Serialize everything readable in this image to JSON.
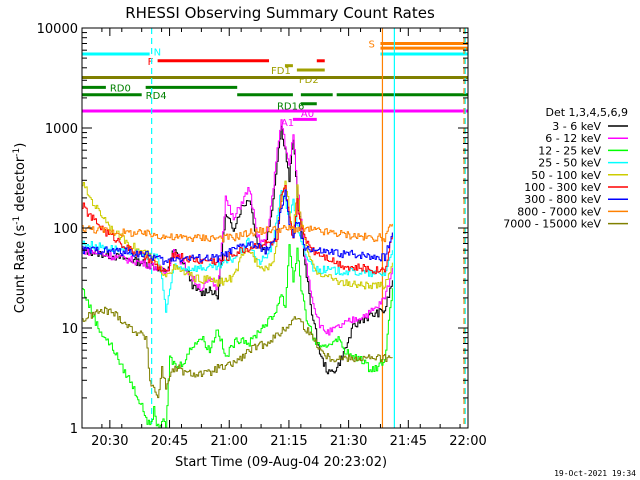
{
  "chart_data": {
    "type": "line",
    "title": "RHESSI Observing Summary Count Rates",
    "xlabel": "Start Time (09-Aug-04 20:23:02)",
    "ylabel_main": "Count Rate (s",
    "ylabel_sup1": "-1",
    "ylabel_mid": " detector",
    "ylabel_sup2": "-1",
    "ylabel_end": ")",
    "x_unit": "minutes after 20:23:02",
    "xlim": [
      0,
      97
    ],
    "ylim": [
      1,
      10000
    ],
    "yscale": "log",
    "x_ticks": [
      {
        "label": "20:30",
        "x": 7
      },
      {
        "label": "20:45",
        "x": 22
      },
      {
        "label": "21:00",
        "x": 37
      },
      {
        "label": "21:15",
        "x": 52
      },
      {
        "label": "21:30",
        "x": 67
      },
      {
        "label": "21:45",
        "x": 82
      },
      {
        "label": "22:00",
        "x": 97
      }
    ],
    "y_ticks": [
      {
        "label": "1",
        "y": 1
      },
      {
        "label": "10",
        "y": 10
      },
      {
        "label": "100",
        "y": 100
      },
      {
        "label": "1000",
        "y": 1000
      },
      {
        "label": "10000",
        "y": 10000
      }
    ],
    "legend_title": "Det 1,3,4,5,6,9",
    "legend_position": "right",
    "series": [
      {
        "name": "3 - 6 keV",
        "color": "#000000",
        "x": [
          0,
          5,
          10,
          15,
          19,
          21,
          23,
          26,
          28,
          30,
          32,
          34,
          36,
          38,
          40,
          42,
          44,
          46,
          48,
          49,
          50,
          51,
          52,
          53,
          54,
          55,
          56,
          58,
          60,
          62,
          64,
          66,
          68,
          70,
          72,
          74,
          76,
          78
        ],
        "y": [
          60,
          55,
          50,
          45,
          40,
          35,
          60,
          40,
          25,
          22,
          25,
          20,
          130,
          100,
          160,
          200,
          70,
          60,
          200,
          500,
          1000,
          600,
          300,
          800,
          200,
          100,
          40,
          12,
          5,
          3.5,
          4,
          6,
          10,
          12,
          13,
          14,
          15,
          30
        ]
      },
      {
        "name": "6 - 12 keV",
        "color": "#ff00ff",
        "x": [
          0,
          5,
          10,
          15,
          19,
          21,
          23,
          26,
          28,
          30,
          32,
          34,
          36,
          38,
          40,
          42,
          44,
          46,
          48,
          49,
          50,
          51,
          52,
          53,
          54,
          55,
          56,
          58,
          60,
          62,
          64,
          66,
          68,
          70,
          72,
          74,
          76,
          78
        ],
        "y": [
          60,
          55,
          50,
          45,
          40,
          35,
          60,
          40,
          30,
          25,
          30,
          25,
          200,
          120,
          180,
          250,
          80,
          70,
          250,
          600,
          1200,
          700,
          400,
          900,
          250,
          120,
          50,
          18,
          10,
          9,
          10,
          11,
          12,
          13,
          14,
          16,
          20,
          40
        ]
      },
      {
        "name": "12 - 25 keV",
        "color": "#00ff00",
        "x": [
          0,
          4,
          8,
          10,
          12,
          14,
          16,
          17,
          18,
          19,
          20,
          21,
          22,
          24,
          26,
          28,
          30,
          32,
          34,
          36,
          38,
          40,
          42,
          44,
          46,
          48,
          50,
          51,
          52,
          53,
          54,
          55,
          56,
          58,
          60,
          62,
          64,
          66,
          68,
          70,
          72,
          74,
          76,
          78
        ],
        "y": [
          25,
          10,
          6,
          4,
          3,
          2,
          1.3,
          1,
          1.5,
          1,
          1.2,
          1,
          5,
          4,
          5,
          7,
          8,
          6,
          10,
          5,
          7,
          8,
          7,
          9,
          11,
          13,
          22,
          16,
          70,
          30,
          60,
          25,
          14,
          8,
          6,
          7,
          8,
          6,
          5,
          5,
          4,
          4,
          5,
          25
        ]
      },
      {
        "name": "25 - 50 keV",
        "color": "#00ffff",
        "x": [
          0,
          5,
          10,
          15,
          19,
          20,
          21,
          23,
          26,
          28,
          30,
          32,
          34,
          36,
          38,
          40,
          42,
          44,
          46,
          48,
          49,
          50,
          51,
          52,
          53,
          54,
          55,
          56,
          58,
          60,
          62,
          64,
          66,
          68,
          70,
          72,
          74,
          76,
          78
        ],
        "y": [
          70,
          65,
          60,
          55,
          50,
          30,
          15,
          40,
          40,
          40,
          40,
          40,
          40,
          45,
          50,
          60,
          75,
          45,
          50,
          70,
          140,
          250,
          180,
          130,
          200,
          100,
          70,
          55,
          40,
          38,
          38,
          37,
          37,
          36,
          36,
          35,
          35,
          35,
          60
        ]
      },
      {
        "name": "50 - 100 keV",
        "color": "#cccc00",
        "x": [
          0,
          2,
          4,
          6,
          8,
          10,
          12,
          14,
          16,
          18,
          19,
          21,
          23,
          26,
          28,
          30,
          32,
          34,
          36,
          38,
          40,
          42,
          44,
          46,
          48,
          49,
          50,
          51,
          52,
          53,
          54,
          55,
          56,
          58,
          60,
          62,
          64,
          66,
          68,
          70,
          72,
          74,
          76,
          78
        ],
        "y": [
          280,
          200,
          150,
          120,
          90,
          80,
          70,
          60,
          55,
          50,
          40,
          35,
          40,
          35,
          32,
          30,
          31,
          28,
          30,
          32,
          50,
          60,
          45,
          40,
          45,
          90,
          200,
          300,
          150,
          90,
          250,
          120,
          70,
          40,
          35,
          32,
          30,
          28,
          27,
          27,
          26,
          26,
          27,
          45
        ]
      },
      {
        "name": "100 - 300 keV",
        "color": "#ff0000",
        "x": [
          0,
          2,
          4,
          6,
          8,
          10,
          12,
          14,
          16,
          18,
          19,
          21,
          23,
          26,
          28,
          30,
          32,
          34,
          36,
          38,
          40,
          42,
          44,
          46,
          48,
          49,
          50,
          51,
          52,
          53,
          54,
          55,
          56,
          58,
          60,
          62,
          64,
          66,
          68,
          70,
          72,
          74,
          76,
          78
        ],
        "y": [
          170,
          130,
          110,
          90,
          80,
          70,
          60,
          55,
          50,
          45,
          40,
          35,
          55,
          50,
          48,
          47,
          48,
          46,
          50,
          55,
          60,
          63,
          68,
          70,
          72,
          75,
          200,
          250,
          120,
          80,
          180,
          100,
          80,
          60,
          55,
          50,
          45,
          42,
          40,
          40,
          39,
          38,
          39,
          90
        ]
      },
      {
        "name": "300 - 800 keV",
        "color": "#0000ff",
        "x": [
          0,
          5,
          10,
          15,
          19,
          21,
          23,
          26,
          28,
          30,
          32,
          34,
          36,
          38,
          40,
          42,
          44,
          46,
          48,
          49,
          50,
          51,
          52,
          53,
          54,
          55,
          56,
          58,
          60,
          62,
          64,
          66,
          68,
          70,
          72,
          74,
          76,
          78
        ],
        "y": [
          60,
          60,
          58,
          55,
          50,
          45,
          50,
          50,
          50,
          50,
          50,
          50,
          55,
          60,
          65,
          70,
          65,
          60,
          70,
          100,
          150,
          250,
          110,
          80,
          120,
          80,
          65,
          60,
          58,
          57,
          56,
          55,
          55,
          54,
          53,
          52,
          51,
          90
        ]
      },
      {
        "name": "800 - 7000 keV",
        "color": "#ff8000",
        "x": [
          0,
          5,
          10,
          15,
          19,
          21,
          23,
          26,
          28,
          30,
          32,
          34,
          36,
          38,
          40,
          42,
          44,
          46,
          48,
          50,
          52,
          54,
          56,
          58,
          60,
          62,
          64,
          66,
          68,
          70,
          72,
          74,
          76,
          78
        ],
        "y": [
          100,
          95,
          90,
          88,
          85,
          82,
          80,
          80,
          80,
          80,
          80,
          80,
          80,
          80,
          85,
          90,
          92,
          95,
          97,
          98,
          98,
          98,
          97,
          95,
          92,
          90,
          88,
          86,
          84,
          82,
          80,
          80,
          80,
          110
        ]
      },
      {
        "name": "7000 - 15000 keV",
        "color": "#808000",
        "x": [
          0,
          3,
          6,
          8,
          10,
          12,
          14,
          16,
          17,
          18,
          19,
          20,
          21,
          22,
          24,
          26,
          28,
          30,
          32,
          34,
          36,
          38,
          40,
          42,
          44,
          46,
          48,
          50,
          52,
          54,
          56,
          58,
          60,
          62,
          64,
          66,
          68,
          70,
          72,
          74,
          76,
          78
        ],
        "y": [
          12,
          14,
          15,
          14,
          12,
          10,
          9,
          8,
          3,
          2.5,
          2,
          4,
          2.5,
          3.5,
          4,
          3.5,
          3.5,
          3.5,
          3.5,
          4,
          4,
          4.5,
          5,
          6,
          6.5,
          7,
          8,
          9,
          11,
          13,
          10,
          8,
          6,
          5,
          5,
          5,
          5,
          5,
          5,
          5,
          5,
          5
        ]
      }
    ],
    "flags": [
      {
        "label": "N",
        "color": "#00ffff",
        "y": 5500,
        "segments": [
          [
            0,
            17
          ]
        ],
        "label_x": 18,
        "label_y": 5800
      },
      {
        "label": "F",
        "color": "#ff0000",
        "y": 4700,
        "segments": [
          [
            19,
            47
          ],
          [
            59,
            61
          ]
        ],
        "label_x": 16.5,
        "label_y": 4700
      },
      {
        "label": "FD1",
        "color": "#a0a000",
        "y": 4200,
        "segments": [
          [
            51,
            53
          ]
        ],
        "label_x": 47.5,
        "label_y": 3800
      },
      {
        "label": "FD2",
        "color": "#a0a000",
        "y": 3800,
        "segments": [
          [
            54,
            61
          ]
        ],
        "label_x": 54.5,
        "label_y": 3100
      },
      {
        "label": "",
        "color": "#808000",
        "y": 3200,
        "segments": [
          [
            0,
            97
          ]
        ],
        "label_x": 0,
        "label_y": 0
      },
      {
        "label": "RD0",
        "color": "#008000",
        "y": 2550,
        "segments": [
          [
            0,
            6
          ],
          [
            16,
            39
          ]
        ],
        "label_x": 7,
        "label_y": 2550
      },
      {
        "label": "RD4",
        "color": "#008000",
        "y": 2150,
        "segments": [
          [
            0,
            15
          ],
          [
            39,
            53
          ],
          [
            55,
            63
          ],
          [
            64,
            97
          ]
        ],
        "label_x": 16,
        "label_y": 2150
      },
      {
        "label": "RD16",
        "color": "#008000",
        "y": 1750,
        "segments": [
          [
            55,
            59
          ]
        ],
        "label_x": 49,
        "label_y": 1680
      },
      {
        "label": "A0",
        "color": "#ff00ff",
        "y": 1480,
        "segments": [
          [
            0,
            97
          ]
        ],
        "label_x": 55,
        "label_y": 1420
      },
      {
        "label": "A1",
        "color": "#ff00ff",
        "y": 1220,
        "segments": [
          [
            53,
            59
          ]
        ],
        "label_x": 50,
        "label_y": 1150
      },
      {
        "label": "S",
        "color": "#ff8000",
        "y": 7000,
        "segments": [
          [
            75,
            97
          ]
        ],
        "label_x": 72,
        "label_y": 7000
      },
      {
        "label": "",
        "color": "#ff8000",
        "y": 6300,
        "segments": [
          [
            75,
            97
          ]
        ],
        "label_x": 0,
        "label_y": 0
      },
      {
        "label": "",
        "color": "#00ffff",
        "y": 5500,
        "segments": [
          [
            75,
            97
          ]
        ],
        "label_x": 0,
        "label_y": 0
      }
    ],
    "vlines": [
      {
        "x": 17.5,
        "color": "#00ffff",
        "dash": true
      },
      {
        "x": 75.5,
        "color": "#ff8000",
        "dash": false
      },
      {
        "x": 78.5,
        "color": "#00ffff",
        "dash": false
      },
      {
        "x": 96,
        "color": "#ff8000",
        "dash": true
      },
      {
        "x": 96.3,
        "color": "#00ffff",
        "dash": true
      }
    ]
  },
  "footer_date": "19-Oct-2021 19:34"
}
